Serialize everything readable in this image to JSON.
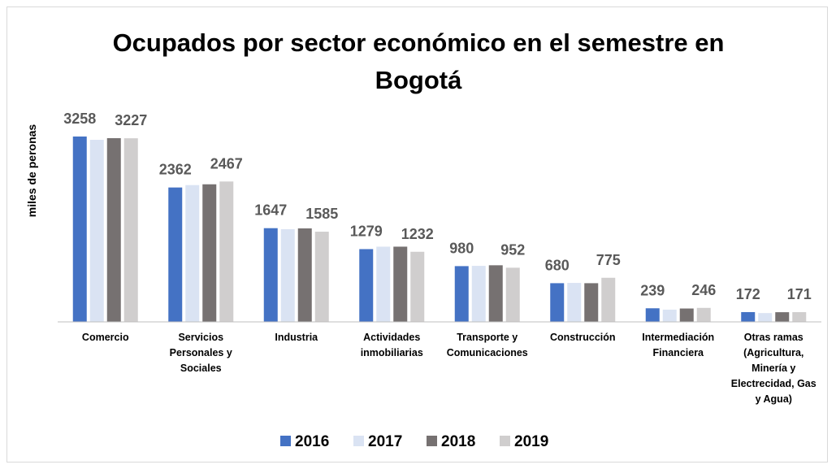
{
  "chart_data": {
    "type": "bar",
    "title": "Ocupados por sector económico en el semestre en Bogotá",
    "y_label": "miles de peronas",
    "categories": [
      "Comercio",
      "Servicios Personales y Sociales",
      "Industria",
      "Actividades inmobiliarias",
      "Transporte y Comunicaciones",
      "Construcción",
      "Intermediación Financiera",
      "Otras ramas (Agricultura, Minería y Electrecidad, Gas y Agua)"
    ],
    "series": [
      {
        "name": "2016",
        "color": "#4472c4",
        "show_labels": true,
        "values": [
          3258,
          2362,
          1647,
          1279,
          980,
          680,
          239,
          172
        ]
      },
      {
        "name": "2017",
        "color": "#dae3f3",
        "show_labels": false,
        "values": [
          3200,
          2404,
          1629,
          1322,
          985,
          685,
          215,
          155
        ]
      },
      {
        "name": "2018",
        "color": "#767171",
        "show_labels": false,
        "values": [
          3229,
          2418,
          1643,
          1322,
          995,
          680,
          235,
          170
        ]
      },
      {
        "name": "2019",
        "color": "#d0cece",
        "show_labels": true,
        "values": [
          3227,
          2467,
          1585,
          1232,
          952,
          775,
          246,
          171
        ]
      }
    ],
    "ylim": [
      0,
      3500
    ],
    "legend": "bottom"
  }
}
